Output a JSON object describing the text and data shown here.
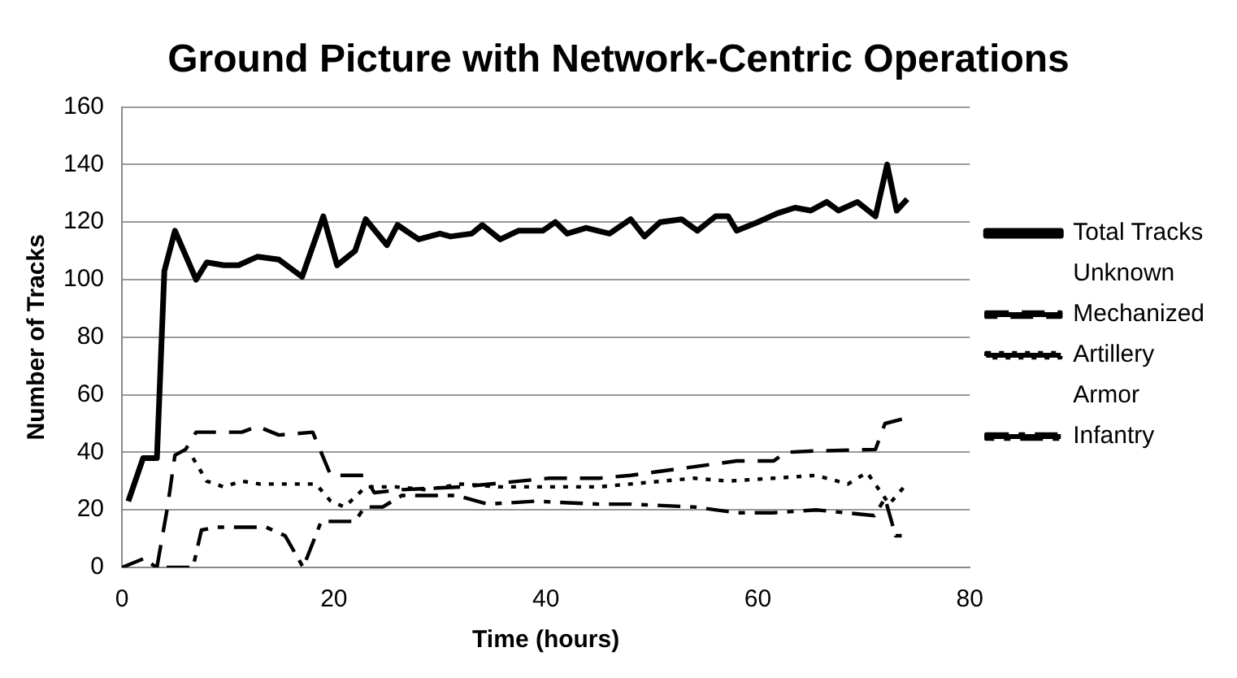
{
  "chart_data": {
    "type": "line",
    "title": "Ground Picture with Network-Centric Operations",
    "xlabel": "Time (hours)",
    "ylabel": "Number of Tracks",
    "xlim": [
      0,
      80
    ],
    "xticks": [
      0,
      20,
      40,
      60,
      80
    ],
    "ylim": [
      0,
      160
    ],
    "yticks": [
      0,
      20,
      40,
      60,
      80,
      100,
      120,
      140,
      160
    ],
    "grid": "y",
    "legend": "right",
    "marker": "none",
    "series": [
      {
        "name": "Total Tracks",
        "color": "#000000",
        "line_style": "solid",
        "x": [
          0.6,
          2,
          3.3,
          4,
          5,
          7,
          8,
          9.6,
          11,
          12.8,
          14.8,
          17,
          19,
          20.3,
          22,
          23,
          25,
          26,
          28,
          30,
          31,
          33,
          34,
          35.7,
          37.4,
          39.7,
          40.9,
          42,
          43.8,
          46,
          48,
          49.3,
          50.8,
          52.8,
          54.3,
          56,
          57.2,
          58,
          60,
          61.8,
          63.5,
          65,
          66.5,
          67.6,
          69.4,
          71.1,
          72.2,
          73.1,
          74.1
        ],
        "values": [
          23,
          38,
          38,
          103,
          117,
          100,
          106,
          105,
          105,
          108,
          107,
          101,
          122,
          105,
          110,
          121,
          112,
          119,
          114,
          116,
          115,
          116,
          119,
          114,
          117,
          117,
          120,
          116,
          118,
          116,
          121,
          115,
          120,
          121,
          117,
          122,
          122,
          117,
          120,
          123,
          125,
          124,
          127,
          124,
          127,
          122,
          140,
          124,
          128
        ]
      },
      {
        "name": "Unknown"
      },
      {
        "name": "Mechanized",
        "color": "#000000",
        "line_style": "dashed",
        "x": [
          3.3,
          4.3,
          5,
          6,
          7,
          11.3,
          12.8,
          14.8,
          18,
          19.7,
          22.9,
          23.8,
          26.4,
          32,
          40.3,
          45,
          48,
          54,
          58,
          61.5,
          62.6,
          65.5,
          71.1,
          72,
          74.1
        ],
        "values": [
          0,
          21,
          39,
          41,
          47,
          47,
          49,
          46,
          47,
          32,
          32,
          26,
          27,
          28,
          31,
          31,
          32,
          35,
          37,
          37,
          40,
          40.5,
          41,
          50,
          52
        ]
      },
      {
        "name": "Artillery",
        "color": "#000000",
        "line_style": "dotted",
        "x": [
          6.7,
          8,
          9.6,
          11.3,
          13,
          15.4,
          18.3,
          19.7,
          21,
          23,
          25.8,
          28.7,
          32,
          35.7,
          39.7,
          45,
          48,
          51,
          54,
          57.2,
          61.5,
          65.5,
          68.5,
          70.3,
          72.4,
          73.8
        ],
        "values": [
          38,
          30,
          28,
          30,
          29,
          29,
          29,
          23,
          21,
          28,
          28,
          27,
          29,
          28,
          28,
          28,
          29,
          30,
          31,
          30,
          31,
          32,
          29,
          33,
          22,
          28
        ]
      },
      {
        "name": "Armor"
      },
      {
        "name": "Infantry",
        "color": "#000000",
        "line_style": "dashdot",
        "x": [
          0,
          2,
          3.3,
          6.7,
          7.5,
          9,
          13.6,
          15.4,
          17.1,
          18.8,
          22,
          22.9,
          24.6,
          26.4,
          31.6,
          34.5,
          39,
          45,
          48,
          54,
          58,
          61.5,
          65.5,
          71,
          72,
          73,
          74
        ],
        "values": [
          0,
          3,
          0,
          0,
          13,
          14,
          14,
          11,
          0,
          16,
          16,
          21,
          21,
          25,
          25,
          22,
          23,
          22,
          22,
          21,
          19,
          19,
          20,
          18,
          24,
          11,
          11
        ]
      }
    ]
  }
}
